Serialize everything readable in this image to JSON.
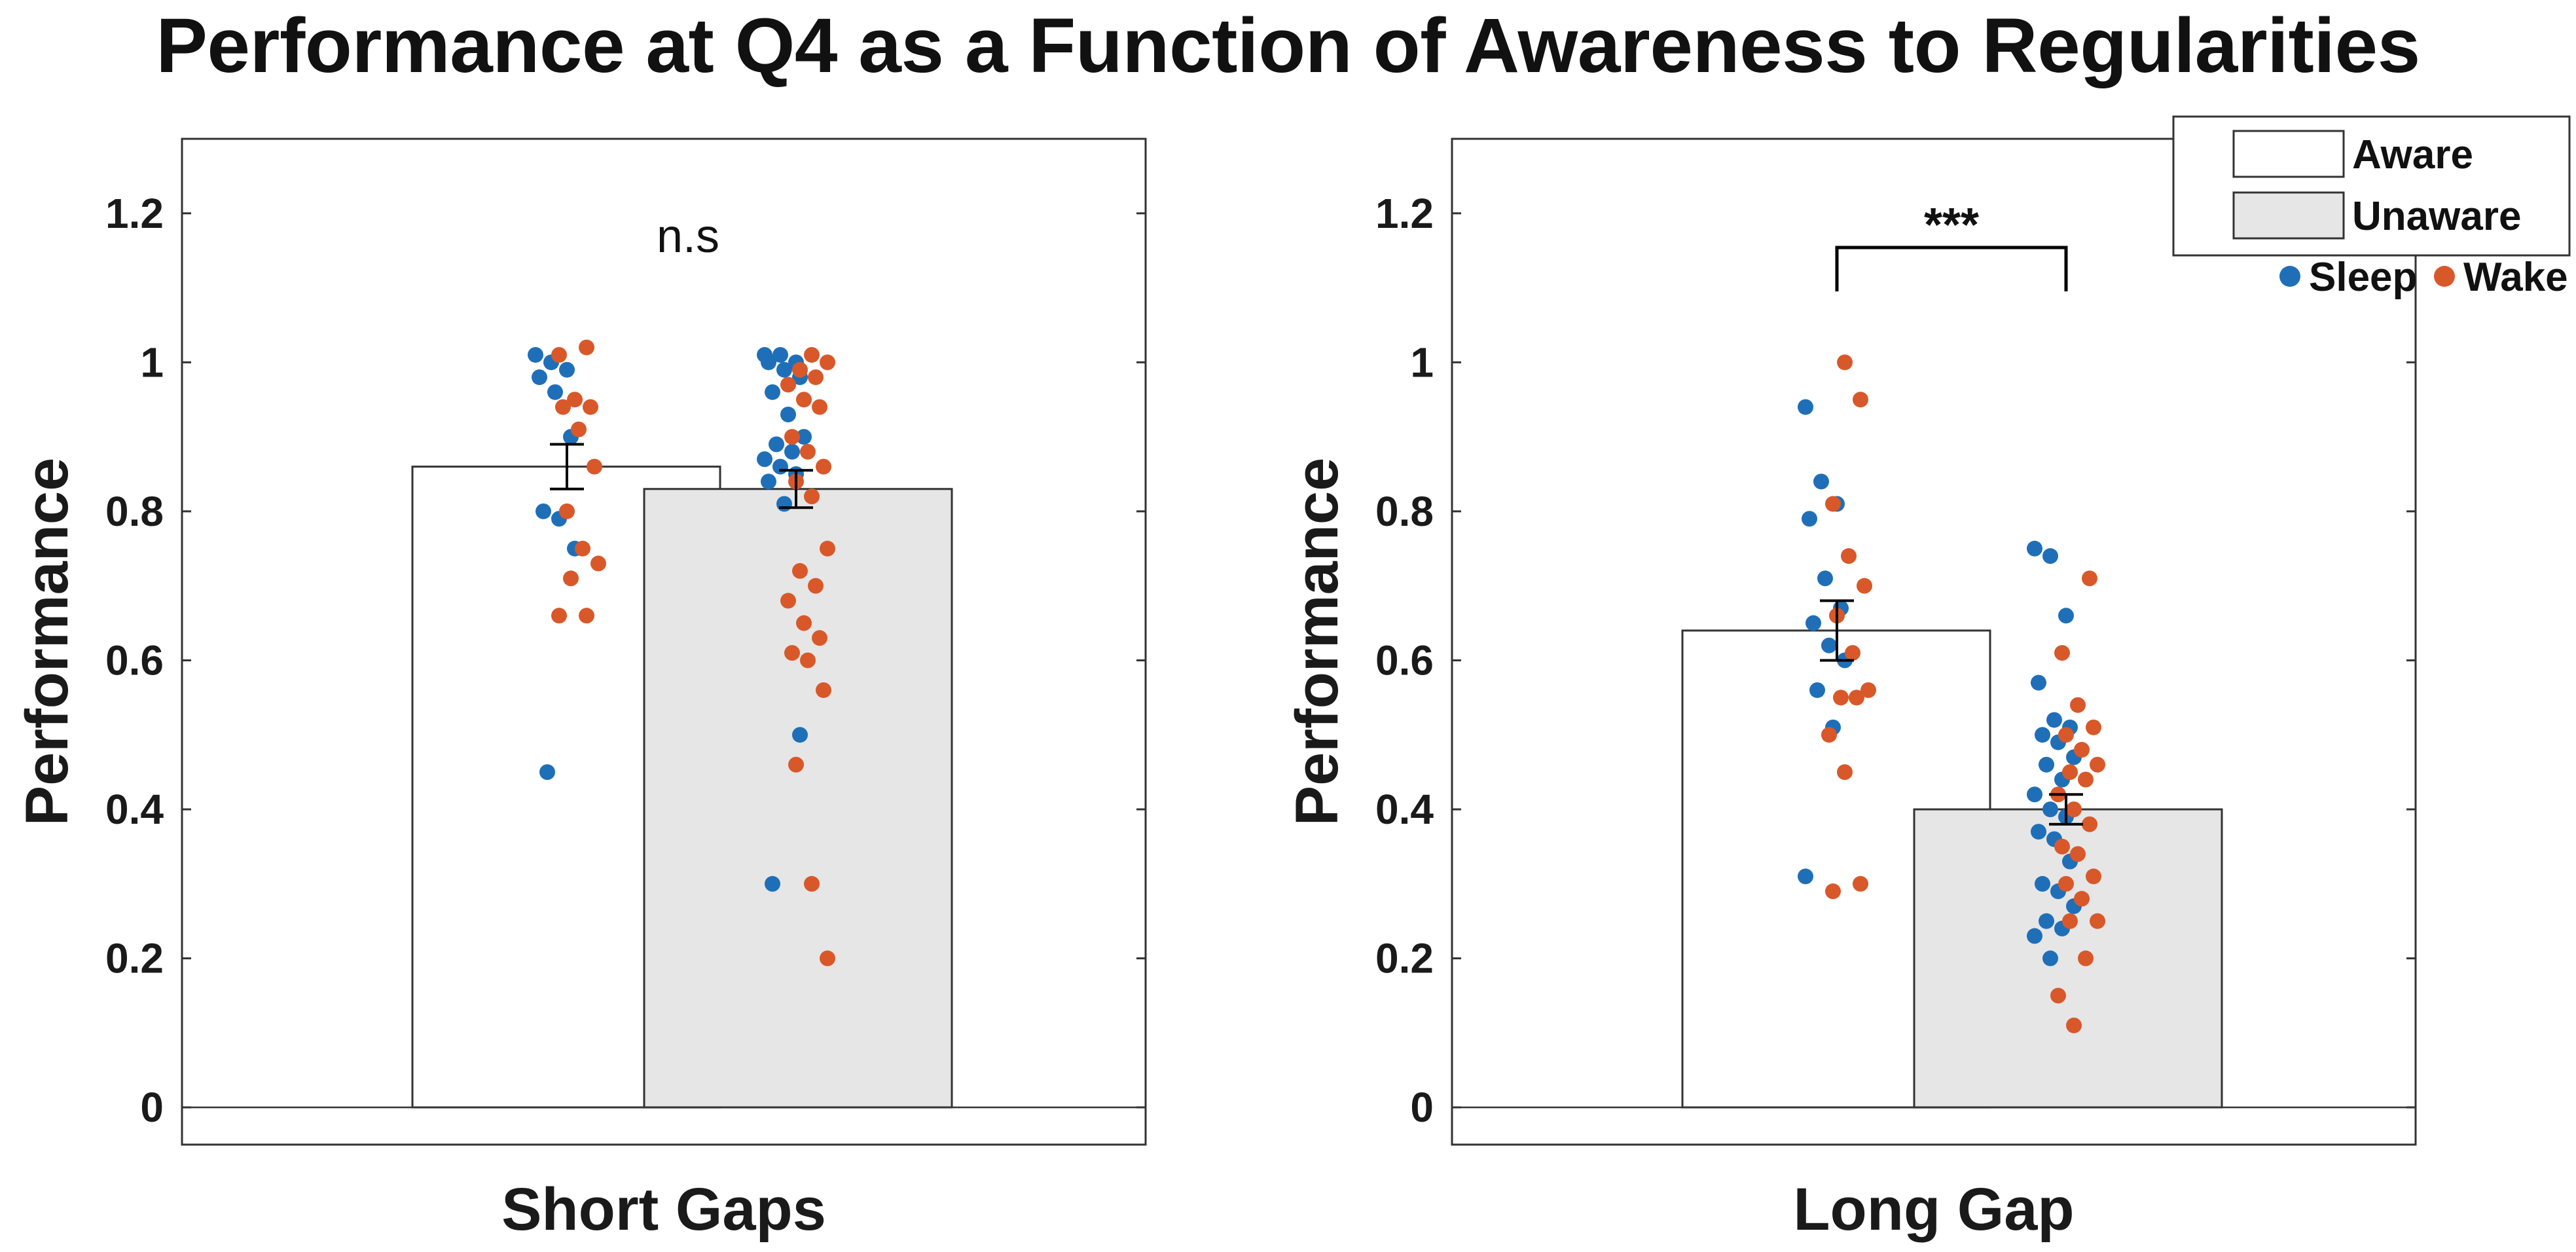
{
  "title": "Performance at Q4 as a Function of Awareness to Regularities",
  "colors": {
    "sleep": "#1f6fb8",
    "wake": "#d8582a",
    "aware_fill": "#ffffff",
    "unaware_fill": "#e6e6e6",
    "axis": "#333333"
  },
  "legend": {
    "bar_entries": [
      "Aware",
      "Unaware"
    ],
    "dot_entries": [
      "Sleep",
      "Wake"
    ],
    "placement": "top-right"
  },
  "chart_data": [
    {
      "type": "bar",
      "panel": "left",
      "xlabel": "Short Gaps",
      "ylabel": "Performance",
      "ylim": [
        -0.05,
        1.3
      ],
      "yticks": [
        "0",
        "0.2",
        "0.4",
        "0.6",
        "0.8",
        "1",
        "1.2"
      ],
      "annotation": "n.s",
      "series": [
        {
          "name": "Aware",
          "value": 0.86,
          "error": 0.03,
          "sleep": [
            1.01,
            1.0,
            0.99,
            0.98,
            0.96,
            0.9,
            0.8,
            0.79,
            0.75,
            0.45
          ],
          "wake": [
            1.02,
            1.01,
            0.95,
            0.94,
            0.94,
            0.91,
            0.86,
            0.8,
            0.75,
            0.73,
            0.71,
            0.66,
            0.66
          ]
        },
        {
          "name": "Unaware",
          "value": 0.83,
          "error": 0.025,
          "sleep": [
            1.01,
            1.01,
            1.0,
            1.0,
            0.99,
            0.98,
            0.96,
            0.93,
            0.9,
            0.89,
            0.88,
            0.87,
            0.86,
            0.85,
            0.84,
            0.81,
            0.5,
            0.3
          ],
          "wake": [
            1.01,
            1.0,
            0.99,
            0.98,
            0.97,
            0.95,
            0.94,
            0.9,
            0.88,
            0.86,
            0.84,
            0.82,
            0.75,
            0.72,
            0.7,
            0.68,
            0.65,
            0.63,
            0.61,
            0.6,
            0.56,
            0.46,
            0.3,
            0.2
          ]
        }
      ]
    },
    {
      "type": "bar",
      "panel": "right",
      "xlabel": "Long Gap",
      "ylabel": "Performance",
      "ylim": [
        -0.05,
        1.3
      ],
      "yticks": [
        "0",
        "0.2",
        "0.4",
        "0.6",
        "0.8",
        "1",
        "1.2"
      ],
      "annotation": "***",
      "series": [
        {
          "name": "Aware",
          "value": 0.64,
          "error": 0.04,
          "sleep": [
            0.94,
            0.84,
            0.81,
            0.79,
            0.71,
            0.67,
            0.65,
            0.62,
            0.6,
            0.56,
            0.51,
            0.31
          ],
          "wake": [
            1.0,
            0.95,
            0.81,
            0.74,
            0.7,
            0.66,
            0.61,
            0.56,
            0.55,
            0.55,
            0.5,
            0.45,
            0.3,
            0.29
          ]
        },
        {
          "name": "Unaware",
          "value": 0.4,
          "error": 0.02,
          "sleep": [
            0.75,
            0.74,
            0.66,
            0.57,
            0.52,
            0.51,
            0.5,
            0.49,
            0.47,
            0.46,
            0.44,
            0.42,
            0.4,
            0.39,
            0.37,
            0.36,
            0.33,
            0.3,
            0.29,
            0.27,
            0.25,
            0.24,
            0.23,
            0.2
          ],
          "wake": [
            0.71,
            0.61,
            0.54,
            0.51,
            0.5,
            0.48,
            0.46,
            0.45,
            0.44,
            0.42,
            0.4,
            0.38,
            0.35,
            0.34,
            0.31,
            0.3,
            0.28,
            0.25,
            0.25,
            0.2,
            0.15,
            0.11
          ]
        }
      ]
    }
  ]
}
